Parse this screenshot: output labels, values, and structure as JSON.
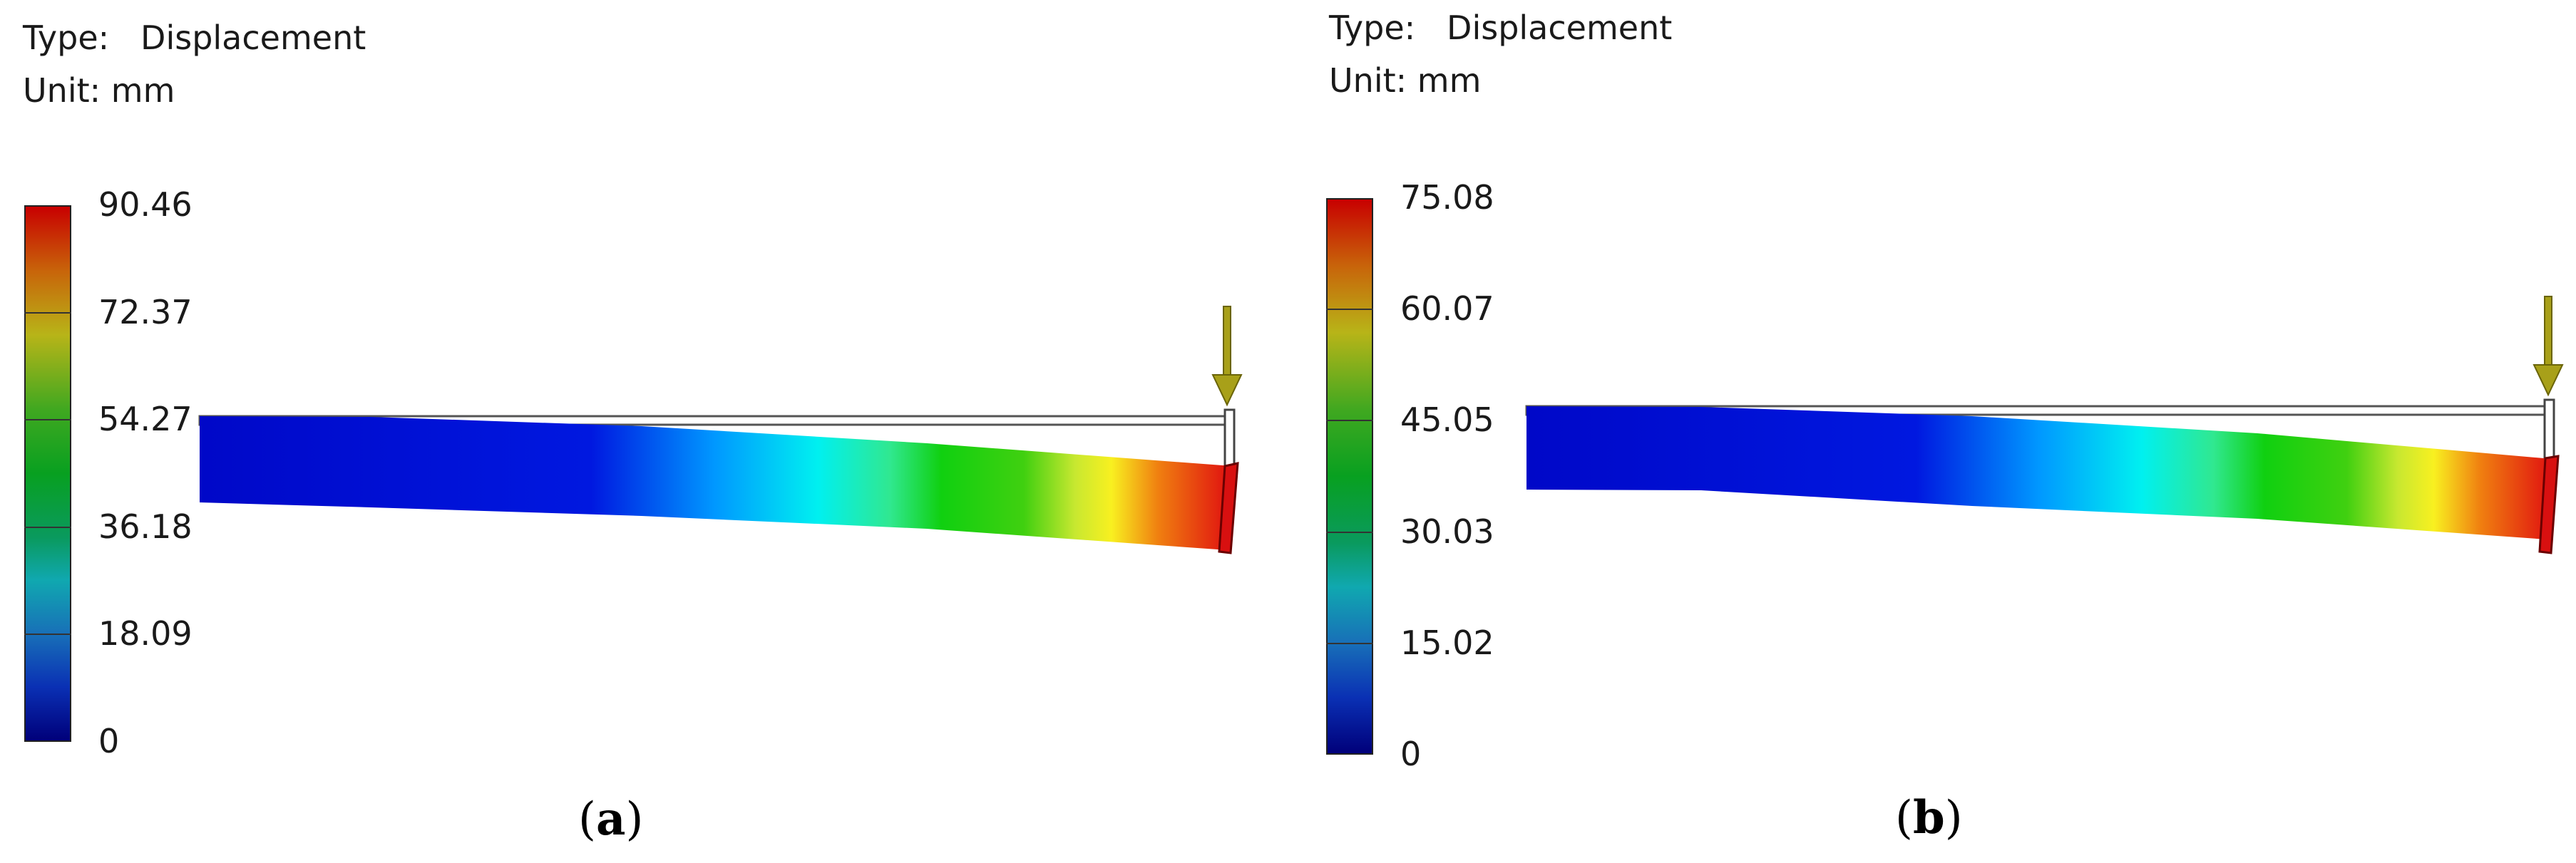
{
  "panels": [
    {
      "id": "a",
      "type_key": "Type:",
      "type_value": "Displacement",
      "unit_key": "Unit:",
      "unit_value": "mm",
      "legend_ticks": [
        "90.46",
        "72.37",
        "54.27",
        "36.18",
        "18.09",
        "0"
      ],
      "label_open": "(",
      "label_letter": "a",
      "label_close": ")"
    },
    {
      "id": "b",
      "type_key": "Type:",
      "type_value": "Displacement",
      "unit_key": "Unit:",
      "unit_value": "mm",
      "legend_ticks": [
        "75.08",
        "60.07",
        "45.05",
        "30.03",
        "15.02",
        "0"
      ],
      "label_open": "(",
      "label_letter": "b",
      "label_close": ")"
    }
  ],
  "colors": {
    "scale_low": "#0000c8",
    "scale_high": "#c80000",
    "load_arrow": "#a8a019",
    "undeformed_outline": "#555555"
  },
  "icons": {
    "load_arrow": "down-arrow-icon"
  }
}
